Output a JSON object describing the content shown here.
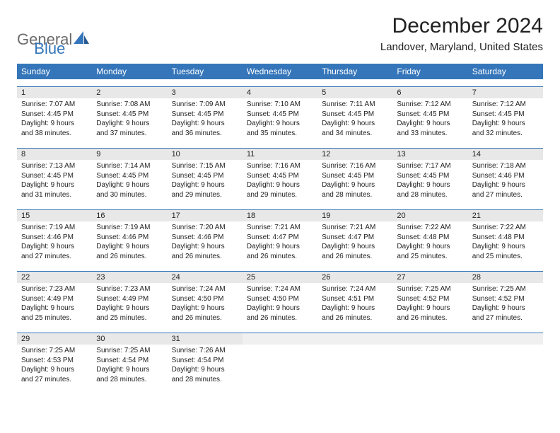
{
  "logo": {
    "text1": "General",
    "text2": "Blue"
  },
  "title": "December 2024",
  "location": "Landover, Maryland, United States",
  "weekday_header_bg": "#3576ba",
  "weekday_header_fg": "#ffffff",
  "daynum_bg": "#e8e8e8",
  "daynum_border": "#3576ba",
  "weekdays": [
    "Sunday",
    "Monday",
    "Tuesday",
    "Wednesday",
    "Thursday",
    "Friday",
    "Saturday"
  ],
  "weeks": [
    [
      {
        "num": "1",
        "sunrise": "Sunrise: 7:07 AM",
        "sunset": "Sunset: 4:45 PM",
        "daylight": "Daylight: 9 hours and 38 minutes."
      },
      {
        "num": "2",
        "sunrise": "Sunrise: 7:08 AM",
        "sunset": "Sunset: 4:45 PM",
        "daylight": "Daylight: 9 hours and 37 minutes."
      },
      {
        "num": "3",
        "sunrise": "Sunrise: 7:09 AM",
        "sunset": "Sunset: 4:45 PM",
        "daylight": "Daylight: 9 hours and 36 minutes."
      },
      {
        "num": "4",
        "sunrise": "Sunrise: 7:10 AM",
        "sunset": "Sunset: 4:45 PM",
        "daylight": "Daylight: 9 hours and 35 minutes."
      },
      {
        "num": "5",
        "sunrise": "Sunrise: 7:11 AM",
        "sunset": "Sunset: 4:45 PM",
        "daylight": "Daylight: 9 hours and 34 minutes."
      },
      {
        "num": "6",
        "sunrise": "Sunrise: 7:12 AM",
        "sunset": "Sunset: 4:45 PM",
        "daylight": "Daylight: 9 hours and 33 minutes."
      },
      {
        "num": "7",
        "sunrise": "Sunrise: 7:12 AM",
        "sunset": "Sunset: 4:45 PM",
        "daylight": "Daylight: 9 hours and 32 minutes."
      }
    ],
    [
      {
        "num": "8",
        "sunrise": "Sunrise: 7:13 AM",
        "sunset": "Sunset: 4:45 PM",
        "daylight": "Daylight: 9 hours and 31 minutes."
      },
      {
        "num": "9",
        "sunrise": "Sunrise: 7:14 AM",
        "sunset": "Sunset: 4:45 PM",
        "daylight": "Daylight: 9 hours and 30 minutes."
      },
      {
        "num": "10",
        "sunrise": "Sunrise: 7:15 AM",
        "sunset": "Sunset: 4:45 PM",
        "daylight": "Daylight: 9 hours and 29 minutes."
      },
      {
        "num": "11",
        "sunrise": "Sunrise: 7:16 AM",
        "sunset": "Sunset: 4:45 PM",
        "daylight": "Daylight: 9 hours and 29 minutes."
      },
      {
        "num": "12",
        "sunrise": "Sunrise: 7:16 AM",
        "sunset": "Sunset: 4:45 PM",
        "daylight": "Daylight: 9 hours and 28 minutes."
      },
      {
        "num": "13",
        "sunrise": "Sunrise: 7:17 AM",
        "sunset": "Sunset: 4:45 PM",
        "daylight": "Daylight: 9 hours and 28 minutes."
      },
      {
        "num": "14",
        "sunrise": "Sunrise: 7:18 AM",
        "sunset": "Sunset: 4:46 PM",
        "daylight": "Daylight: 9 hours and 27 minutes."
      }
    ],
    [
      {
        "num": "15",
        "sunrise": "Sunrise: 7:19 AM",
        "sunset": "Sunset: 4:46 PM",
        "daylight": "Daylight: 9 hours and 27 minutes."
      },
      {
        "num": "16",
        "sunrise": "Sunrise: 7:19 AM",
        "sunset": "Sunset: 4:46 PM",
        "daylight": "Daylight: 9 hours and 26 minutes."
      },
      {
        "num": "17",
        "sunrise": "Sunrise: 7:20 AM",
        "sunset": "Sunset: 4:46 PM",
        "daylight": "Daylight: 9 hours and 26 minutes."
      },
      {
        "num": "18",
        "sunrise": "Sunrise: 7:21 AM",
        "sunset": "Sunset: 4:47 PM",
        "daylight": "Daylight: 9 hours and 26 minutes."
      },
      {
        "num": "19",
        "sunrise": "Sunrise: 7:21 AM",
        "sunset": "Sunset: 4:47 PM",
        "daylight": "Daylight: 9 hours and 26 minutes."
      },
      {
        "num": "20",
        "sunrise": "Sunrise: 7:22 AM",
        "sunset": "Sunset: 4:48 PM",
        "daylight": "Daylight: 9 hours and 25 minutes."
      },
      {
        "num": "21",
        "sunrise": "Sunrise: 7:22 AM",
        "sunset": "Sunset: 4:48 PM",
        "daylight": "Daylight: 9 hours and 25 minutes."
      }
    ],
    [
      {
        "num": "22",
        "sunrise": "Sunrise: 7:23 AM",
        "sunset": "Sunset: 4:49 PM",
        "daylight": "Daylight: 9 hours and 25 minutes."
      },
      {
        "num": "23",
        "sunrise": "Sunrise: 7:23 AM",
        "sunset": "Sunset: 4:49 PM",
        "daylight": "Daylight: 9 hours and 25 minutes."
      },
      {
        "num": "24",
        "sunrise": "Sunrise: 7:24 AM",
        "sunset": "Sunset: 4:50 PM",
        "daylight": "Daylight: 9 hours and 26 minutes."
      },
      {
        "num": "25",
        "sunrise": "Sunrise: 7:24 AM",
        "sunset": "Sunset: 4:50 PM",
        "daylight": "Daylight: 9 hours and 26 minutes."
      },
      {
        "num": "26",
        "sunrise": "Sunrise: 7:24 AM",
        "sunset": "Sunset: 4:51 PM",
        "daylight": "Daylight: 9 hours and 26 minutes."
      },
      {
        "num": "27",
        "sunrise": "Sunrise: 7:25 AM",
        "sunset": "Sunset: 4:52 PM",
        "daylight": "Daylight: 9 hours and 26 minutes."
      },
      {
        "num": "28",
        "sunrise": "Sunrise: 7:25 AM",
        "sunset": "Sunset: 4:52 PM",
        "daylight": "Daylight: 9 hours and 27 minutes."
      }
    ],
    [
      {
        "num": "29",
        "sunrise": "Sunrise: 7:25 AM",
        "sunset": "Sunset: 4:53 PM",
        "daylight": "Daylight: 9 hours and 27 minutes."
      },
      {
        "num": "30",
        "sunrise": "Sunrise: 7:25 AM",
        "sunset": "Sunset: 4:54 PM",
        "daylight": "Daylight: 9 hours and 28 minutes."
      },
      {
        "num": "31",
        "sunrise": "Sunrise: 7:26 AM",
        "sunset": "Sunset: 4:54 PM",
        "daylight": "Daylight: 9 hours and 28 minutes."
      },
      {
        "empty": true
      },
      {
        "empty": true
      },
      {
        "empty": true
      },
      {
        "empty": true
      }
    ]
  ]
}
